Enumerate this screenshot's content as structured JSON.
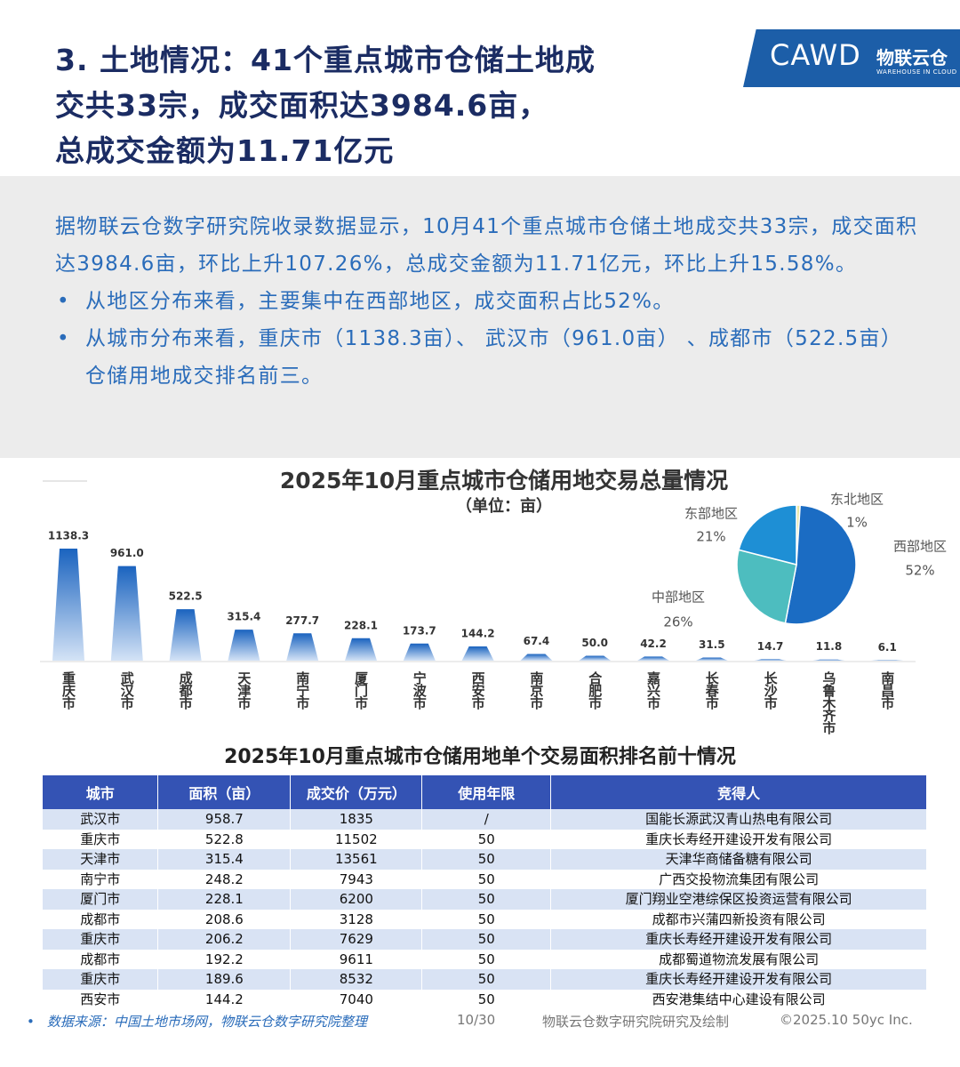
{
  "header": {
    "title_lines": [
      "3. 土地情况：41个重点城市仓储土地成",
      "交共33宗，成交面积达3984.6亩，",
      "总成交金额为11.71亿元"
    ],
    "logo": {
      "name": "CAWD",
      "brand": "物联云仓",
      "tagline": "WAREHOUSE IN CLOUD"
    }
  },
  "summary": {
    "paragraph": "据物联云仓数字研究院收录数据显示，10月41个重点城市仓储土地成交共33宗，成交面积达3984.6亩，环比上升107.26%，总成交金额为11.71亿元，环比上升15.58%。",
    "bullets": [
      "从地区分布来看，主要集中在西部地区，成交面积占比52%。",
      "从城市分布来看，重庆市（1138.3亩）、 武汉市（961.0亩） 、成都市（522.5亩）仓储用地成交排名前三。"
    ]
  },
  "chart_data": [
    {
      "type": "bar",
      "title": "2025年10月重点城市仓储用地交易总量情况",
      "subtitle": "（单位：亩）",
      "categories": [
        "重庆市",
        "武汉市",
        "成都市",
        "天津市",
        "南宁市",
        "厦门市",
        "宁波市",
        "西安市",
        "南京市",
        "合肥市",
        "嘉兴市",
        "长春市",
        "长沙市",
        "乌鲁木齐市",
        "南昌市"
      ],
      "values": [
        1138.3,
        961.0,
        522.5,
        315.4,
        277.7,
        228.1,
        173.7,
        144.2,
        67.4,
        50.0,
        42.2,
        31.5,
        14.7,
        11.8,
        6.1
      ],
      "value_labels": [
        "1138.3",
        "961.0",
        "522.5",
        "315.4",
        "277.7",
        "228.1",
        "173.7",
        "144.2",
        "67.4",
        "50.0",
        "42.2",
        "31.5",
        "14.7",
        "11.8",
        "6.1"
      ],
      "color": "#1a63bf"
    },
    {
      "type": "pie",
      "categories": [
        "东北地区",
        "西部地区",
        "中部地区",
        "东部地区"
      ],
      "values": [
        1,
        52,
        26,
        21
      ],
      "value_labels": [
        "1%",
        "52%",
        "26%",
        "21%"
      ],
      "colors": [
        "#e9e7a3",
        "#1b6cc3",
        "#4dbdbf",
        "#1e8fd5"
      ]
    }
  ],
  "table": {
    "title": "2025年10月重点城市仓储用地单个交易面积排名前十情况",
    "columns": [
      "城市",
      "面积（亩）",
      "成交价（万元）",
      "使用年限",
      "竞得人"
    ],
    "rows": [
      [
        "武汉市",
        "958.7",
        "1835",
        "/",
        "国能长源武汉青山热电有限公司"
      ],
      [
        "重庆市",
        "522.8",
        "11502",
        "50",
        "重庆长寿经开建设开发有限公司"
      ],
      [
        "天津市",
        "315.4",
        "13561",
        "50",
        "天津华商储备糖有限公司"
      ],
      [
        "南宁市",
        "248.2",
        "7943",
        "50",
        "广西交投物流集团有限公司"
      ],
      [
        "厦门市",
        "228.1",
        "6200",
        "50",
        "厦门翔业空港综保区投资运营有限公司"
      ],
      [
        "成都市",
        "208.6",
        "3128",
        "50",
        "成都市兴蒲四新投资有限公司"
      ],
      [
        "重庆市",
        "206.2",
        "7629",
        "50",
        "重庆长寿经开建设开发有限公司"
      ],
      [
        "成都市",
        "192.2",
        "9611",
        "50",
        "成都蜀道物流发展有限公司"
      ],
      [
        "重庆市",
        "189.6",
        "8532",
        "50",
        "重庆长寿经开建设开发有限公司"
      ],
      [
        "西安市",
        "144.2",
        "7040",
        "50",
        "西安港集结中心建设有限公司"
      ]
    ]
  },
  "footer": {
    "source": "数据来源：中国土地市场网，物联云仓数字研究院整理",
    "page": "10/30",
    "credit": "物联云仓数字研究院研究及绘制",
    "copyright": "©2025.10 50yc Inc."
  }
}
